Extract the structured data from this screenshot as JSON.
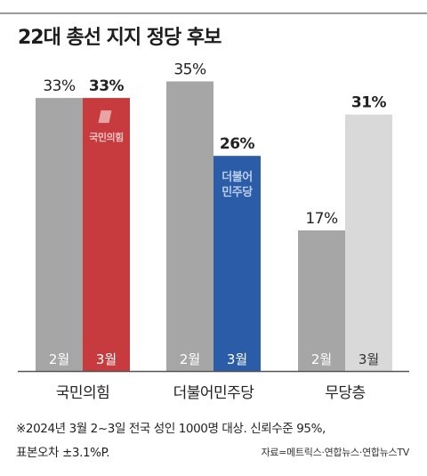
{
  "title": "22대 총선 지지 정당 후보",
  "chart_data": {
    "type": "bar",
    "categories": [
      "국민의힘",
      "더불어민주당",
      "무당층"
    ],
    "series": [
      {
        "name": "2월",
        "values": [
          33,
          35,
          17
        ]
      },
      {
        "name": "3월",
        "values": [
          33,
          26,
          31
        ]
      }
    ],
    "value_labels": [
      [
        "33%",
        "33%"
      ],
      [
        "35%",
        "26%"
      ],
      [
        "17%",
        "31%"
      ]
    ],
    "bar_inner_labels": [
      "국민의힘",
      "더불어\n민주당",
      ""
    ],
    "ylim": [
      0,
      40
    ],
    "grid": false,
    "colors": {
      "feb": "#a6a6a6",
      "mar": [
        "#c73b3e",
        "#2a5ca8",
        "#d9d9d9"
      ],
      "mar_month_text": [
        "#ffffff",
        "#ffffff",
        "#333333"
      ]
    }
  },
  "notes": {
    "line1": "※2024년 3월 2~3일 전국 성인 1000명 대상. 신뢰수준 95%,",
    "line2": "표본오차 ±3.1%P.",
    "source": "자료=메트릭스·연합뉴스·연합뉴스TV"
  }
}
